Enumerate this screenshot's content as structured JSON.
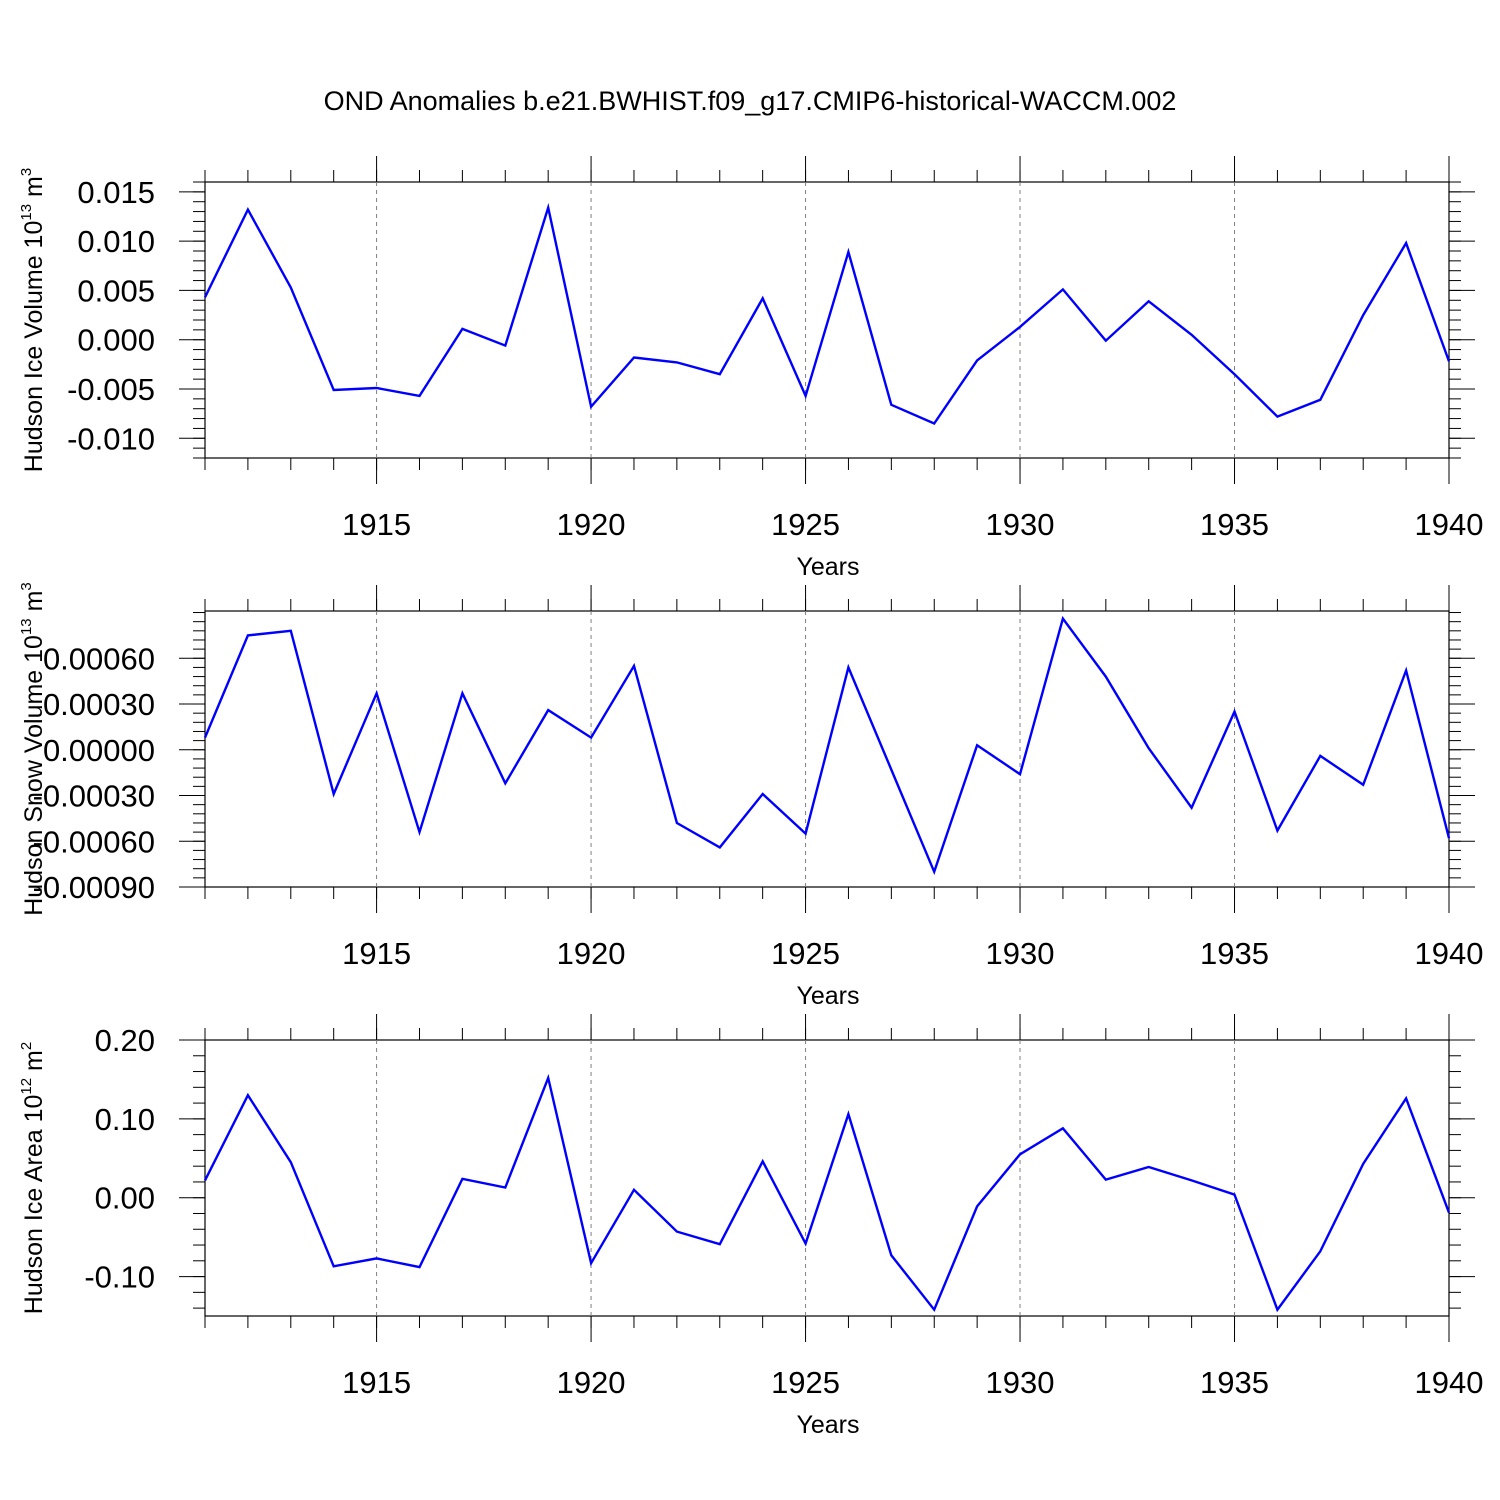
{
  "figure_title": "OND Anomalies b.e21.BWHIST.f09_g17.CMIP6-historical-WACCM.002",
  "colors": {
    "line": "#0000ff",
    "axis": "#000000",
    "grid": "#808080"
  },
  "chart_data": [
    {
      "type": "line",
      "ylabel": {
        "text": "Hudson Ice Volume 10",
        "exp": "13",
        "unit": " m",
        "unit_exp": "3"
      },
      "xlabel": "Years",
      "xlim": [
        1911,
        1940
      ],
      "ylim": [
        -0.012,
        0.016
      ],
      "xticks": [
        1915,
        1920,
        1925,
        1930,
        1935,
        1940
      ],
      "xtick_labels": [
        "1915",
        "1920",
        "1925",
        "1930",
        "1935",
        "1940"
      ],
      "yticks": [
        0.015,
        0.01,
        0.005,
        0.0,
        -0.005,
        -0.01
      ],
      "ytick_labels": [
        "0.015",
        "0.010",
        "0.005",
        "0.000",
        "-0.005",
        "-0.010"
      ],
      "x": [
        1911,
        1912,
        1913,
        1914,
        1915,
        1916,
        1917,
        1918,
        1919,
        1920,
        1921,
        1922,
        1923,
        1924,
        1925,
        1926,
        1927,
        1928,
        1929,
        1930,
        1931,
        1932,
        1933,
        1934,
        1935,
        1936,
        1937,
        1938,
        1939,
        1940
      ],
      "values": [
        0.0043,
        0.0132,
        0.0053,
        -0.0051,
        -0.0049,
        -0.0057,
        0.0011,
        -0.0006,
        0.0134,
        -0.0068,
        -0.0018,
        -0.0023,
        -0.0035,
        0.0042,
        -0.0057,
        0.0089,
        -0.0066,
        -0.0085,
        -0.0021,
        0.0013,
        0.0051,
        -0.0001,
        0.0039,
        0.0005,
        -0.0035,
        -0.0078,
        -0.0061,
        0.0025,
        0.0098,
        -0.0022
      ]
    },
    {
      "type": "line",
      "ylabel": {
        "text": "Hudson Snow Volume 10",
        "exp": "13",
        "unit": " m",
        "unit_exp": "3"
      },
      "xlabel": "Years",
      "xlim": [
        1911,
        1940
      ],
      "ylim": [
        -0.0009,
        0.00091
      ],
      "xticks": [
        1915,
        1920,
        1925,
        1930,
        1935,
        1940
      ],
      "xtick_labels": [
        "1915",
        "1920",
        "1925",
        "1930",
        "1935",
        "1940"
      ],
      "yticks": [
        0.0006,
        0.0003,
        0.0,
        -0.0003,
        -0.0006,
        -0.0009
      ],
      "ytick_labels": [
        "0.00060",
        "0.00030",
        "0.00000",
        "-0.00030",
        "-0.00060",
        "-0.00090"
      ],
      "x": [
        1911,
        1912,
        1913,
        1914,
        1915,
        1916,
        1917,
        1918,
        1919,
        1920,
        1921,
        1922,
        1923,
        1924,
        1925,
        1926,
        1927,
        1928,
        1929,
        1930,
        1931,
        1932,
        1933,
        1934,
        1935,
        1936,
        1937,
        1938,
        1939,
        1940
      ],
      "values": [
        8e-05,
        0.00075,
        0.00078,
        -0.00029,
        0.00037,
        -0.00054,
        0.00037,
        -0.00022,
        0.00026,
        8e-05,
        0.00055,
        -0.00048,
        -0.00064,
        -0.00029,
        -0.00055,
        0.00054,
        -0.00013,
        -0.0008,
        3e-05,
        -0.00016,
        0.00086,
        0.00048,
        1e-05,
        -0.00038,
        0.00025,
        -0.00053,
        -4e-05,
        -0.00023,
        0.00052,
        -0.00058
      ]
    },
    {
      "type": "line",
      "ylabel": {
        "text": "Hudson Ice Area 10",
        "exp": "12",
        "unit": " m",
        "unit_exp": "2"
      },
      "xlabel": "Years",
      "xlim": [
        1911,
        1940
      ],
      "ylim": [
        -0.15,
        0.2
      ],
      "xticks": [
        1915,
        1920,
        1925,
        1930,
        1935,
        1940
      ],
      "xtick_labels": [
        "1915",
        "1920",
        "1925",
        "1930",
        "1935",
        "1940"
      ],
      "yticks": [
        0.2,
        0.1,
        0.0,
        -0.1
      ],
      "ytick_labels": [
        "0.20",
        "0.10",
        "0.00",
        "-0.10"
      ],
      "x": [
        1911,
        1912,
        1913,
        1914,
        1915,
        1916,
        1917,
        1918,
        1919,
        1920,
        1921,
        1922,
        1923,
        1924,
        1925,
        1926,
        1927,
        1928,
        1929,
        1930,
        1931,
        1932,
        1933,
        1934,
        1935,
        1936,
        1937,
        1938,
        1939,
        1940
      ],
      "values": [
        0.022,
        0.13,
        0.045,
        -0.087,
        -0.077,
        -0.088,
        0.024,
        0.013,
        0.152,
        -0.083,
        0.01,
        -0.043,
        -0.059,
        0.046,
        -0.058,
        0.106,
        -0.073,
        -0.142,
        -0.011,
        0.055,
        0.088,
        0.023,
        0.039,
        0.022,
        0.004,
        -0.142,
        -0.068,
        0.043,
        0.126,
        -0.019
      ]
    }
  ]
}
